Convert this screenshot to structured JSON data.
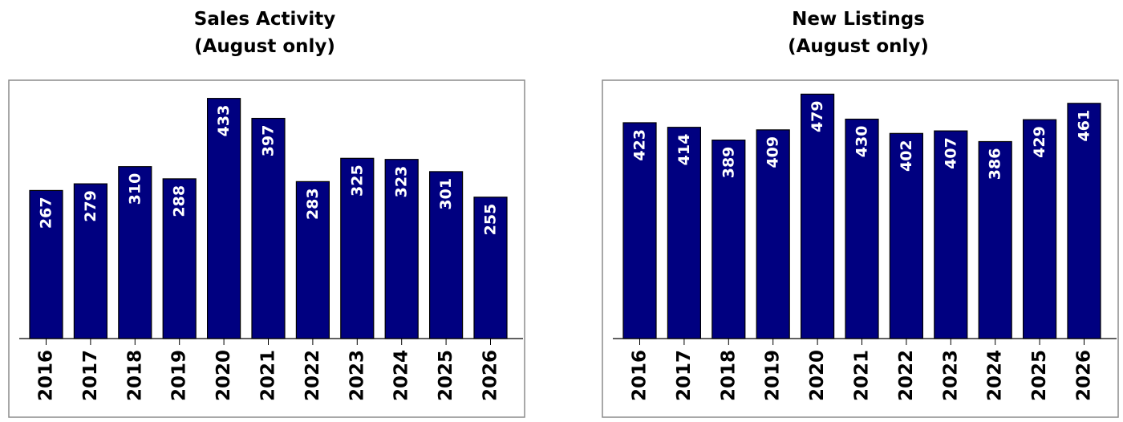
{
  "chart_data": [
    {
      "type": "bar",
      "title_lines": [
        "Sales Activity",
        "(August only)"
      ],
      "xlabel": "",
      "ylabel": "",
      "ylim": [
        0,
        460
      ],
      "grid": false,
      "legend": "none",
      "categories": [
        "2016",
        "2017",
        "2018",
        "2019",
        "2020",
        "2021",
        "2022",
        "2023",
        "2024",
        "2025",
        "2026"
      ],
      "values": [
        267,
        279,
        310,
        288,
        433,
        397,
        283,
        325,
        323,
        301,
        255
      ],
      "bar_color": "#000080"
    },
    {
      "type": "bar",
      "title_lines": [
        "New Listings",
        "(August only)"
      ],
      "xlabel": "",
      "ylabel": "",
      "ylim": [
        0,
        500
      ],
      "grid": false,
      "legend": "none",
      "categories": [
        "2016",
        "2017",
        "2018",
        "2019",
        "2020",
        "2021",
        "2022",
        "2023",
        "2024",
        "2025",
        "2026"
      ],
      "values": [
        423,
        414,
        389,
        409,
        479,
        430,
        402,
        407,
        386,
        429,
        461
      ],
      "bar_color": "#000080"
    }
  ]
}
